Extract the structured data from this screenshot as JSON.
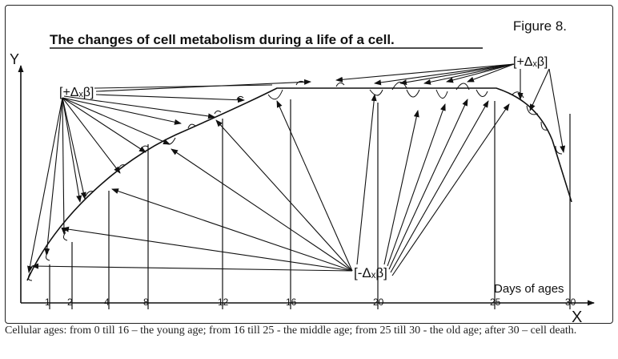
{
  "figure_label": "Figure 8.",
  "title": "The changes of cell metabolism during a life of a cell.",
  "axis": {
    "y_label": "Y",
    "x_label": "X",
    "x_caption": "Days of ages"
  },
  "x_ticks": [
    "1",
    "2",
    "4",
    "8",
    "12",
    "16",
    "20",
    "25",
    "30"
  ],
  "labels": {
    "plus_left": "[+Δₓβ]",
    "plus_right": "[+Δₓβ]",
    "minus": "[-Δₓβ]"
  },
  "caption": "Cellular ages: from 0 till 16 – the young age; from 16 till 25 - the middle age; from 25 till 30 - the old age; after 30 – cell death."
}
